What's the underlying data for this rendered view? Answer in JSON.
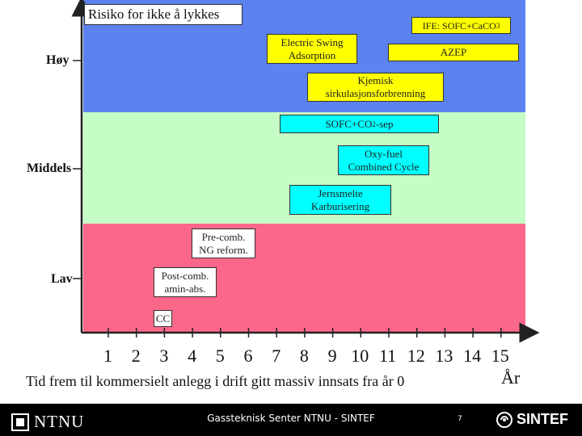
{
  "title": "Risiko for ikke å lykkes",
  "colors": {
    "high": "#5b82ee",
    "mid": "#c6fcc6",
    "low": "#fb6788",
    "yellow": "#ffff00",
    "cyan": "#00ffff",
    "white": "#ffffff"
  },
  "y_levels": [
    {
      "label": "Høy"
    },
    {
      "label": "Middels"
    },
    {
      "label": "Lav"
    }
  ],
  "x_ticks": [
    "1",
    "2",
    "3",
    "4",
    "5",
    "6",
    "7",
    "8",
    "9",
    "10",
    "11",
    "12",
    "13",
    "14",
    "15"
  ],
  "x_axis_label": "Tid frem til kommersielt anlegg i drift gitt massiv innsats fra år 0",
  "x_unit": "År",
  "boxes": {
    "ife": {
      "text": "IFE: SOFC+CaCO",
      "sub": "3"
    },
    "esa": {
      "text": "Electric Swing\nAdsorption"
    },
    "azep": {
      "text": "AZEP"
    },
    "kjemisk": {
      "text": "Kjemisk\nsirkulasjonsforbrenning"
    },
    "sofc": {
      "text": "SOFC+CO",
      "sub": "2",
      "after": "-sep"
    },
    "oxy": {
      "text": "Oxy-fuel\nCombined Cycle"
    },
    "jern": {
      "text": "Jernsmelte\nKarburisering"
    },
    "precomb": {
      "text": "Pre-comb.\nNG reform."
    },
    "postcomb": {
      "text": "Post-comb.\namin-abs."
    },
    "cc": {
      "text": "CC"
    }
  },
  "footer": {
    "left_logo": "NTNU",
    "center": "Gassteknisk Senter NTNU - SINTEF",
    "page": "7",
    "right_logo": "SINTEF"
  }
}
